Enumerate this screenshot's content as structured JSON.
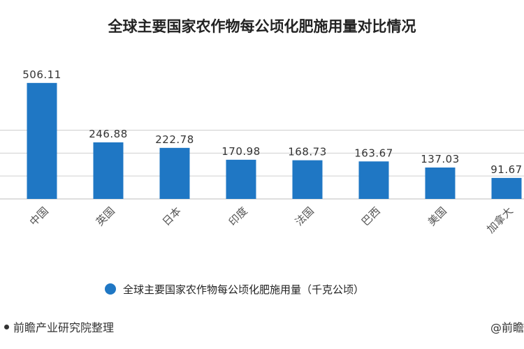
{
  "chart_data": {
    "type": "bar",
    "title": "全球主要国家农作物每公顷化肥施用量对比情况",
    "categories": [
      "中国",
      "英国",
      "日本",
      "印度",
      "法国",
      "巴西",
      "美国",
      "加拿大"
    ],
    "series": [
      {
        "name": "全球主要国家农作物每公顷化肥施用量（千克公顷）",
        "values": [
          506.11,
          246.88,
          222.78,
          170.98,
          168.73,
          163.67,
          137.03,
          91.67
        ]
      }
    ],
    "value_labels": [
      "506.11",
      "246.88",
      "222.78",
      "170.98",
      "168.73",
      "163.67",
      "137.03",
      "91.67"
    ],
    "ylim": [
      0,
      600
    ],
    "grid": true,
    "legend_position": "bottom",
    "bar_color": "#1f77c4",
    "grid_color": "#cfcfcf"
  },
  "source_text": "前瞻产业研究院整理",
  "corner_text": "@前瞻"
}
